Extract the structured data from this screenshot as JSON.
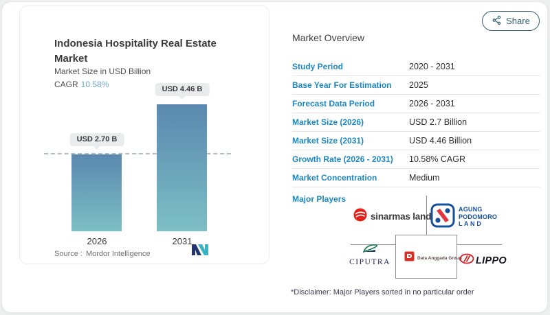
{
  "share": {
    "label": "Share",
    "icon": "share-nodes-icon",
    "color": "#35606f"
  },
  "chart_card": {
    "title": "Indonesia Hospitality Real Estate Market",
    "subtitle": "Market Size in USD Billion",
    "cagr_label": "CAGR",
    "cagr_value": "10.58%",
    "source_label": "Source :",
    "source_value": "Mordor Intelligence",
    "logo": "mordor-intelligence-logo"
  },
  "chart_data": {
    "type": "bar",
    "categories": [
      "2026",
      "2031"
    ],
    "values": [
      2.7,
      4.46
    ],
    "value_labels": [
      "USD 2.70 B",
      "USD 4.46 B"
    ],
    "title": "Indonesia Hospitality Real Estate Market",
    "ylabel": "Market Size in USD Billion",
    "ylim": [
      0,
      5
    ],
    "grid": false,
    "reference_dashed_line_at": 2.7,
    "bar_gradient_top": "#5a88af",
    "bar_gradient_bottom": "#7dbfc5"
  },
  "overview": {
    "title": "Market Overview",
    "rows": [
      {
        "label": "Study Period",
        "value": "2020 - 2031"
      },
      {
        "label": "Base Year For Estimation",
        "value": "2025"
      },
      {
        "label": "Forecast Data Period",
        "value": "2026 - 2031"
      },
      {
        "label": "Market Size (2026)",
        "value": "USD 2.7 Billion"
      },
      {
        "label": "Market Size (2031)",
        "value": "USD 4.46 Billion"
      },
      {
        "label": "Growth Rate (2026 - 2031)",
        "value": "10.58% CAGR"
      },
      {
        "label": "Market Concentration",
        "value": "Medium"
      }
    ],
    "major_players_label": "Major Players",
    "players": {
      "sinarmas": {
        "text": "sinarmas land",
        "icon": "sinarmas-land-logo"
      },
      "apl": {
        "lines": [
          "AGUNG",
          "PODOMORO",
          "L A N D"
        ],
        "icon": "agung-podomoro-land-logo"
      },
      "ciputra": {
        "text": "CIPUTRA",
        "icon": "ciputra-logo"
      },
      "data_anggada": {
        "text": "Data Anggada Group",
        "icon": "data-anggada-group-logo"
      },
      "lippo": {
        "text": "LIPPO",
        "icon": "lippo-logo"
      }
    },
    "disclaimer": "*Disclaimer: Major Players sorted in no particular order"
  },
  "colors": {
    "table_label_blue": "#1b87c2",
    "cagr_value_blue": "#6ea7cd",
    "share_teal": "#35606f",
    "divider_gray": "#e3e3e3"
  }
}
